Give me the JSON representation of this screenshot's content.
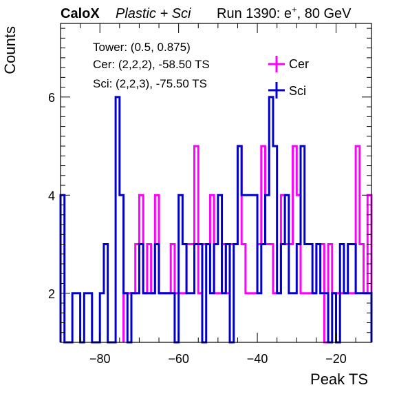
{
  "header": {
    "brand": "CaloX",
    "subtitle": "Plastic + Sci",
    "run_prefix": "Run 1390: e",
    "run_sup": "+",
    "run_suffix": ", 80 GeV"
  },
  "info": {
    "tower": "Tower: (0.5, 0.875)",
    "cer": "Cer: (2,2,2), -58.50 TS",
    "sci": "Sci: (2,2,3), -75.50 TS"
  },
  "chart_data": {
    "type": "step-histogram",
    "xlabel": "Peak TS",
    "ylabel": "Counts",
    "xlim": [
      -90,
      -11
    ],
    "ylim": [
      1,
      7.5
    ],
    "x_ticks": [
      -80,
      -60,
      -40,
      -20
    ],
    "y_ticks": [
      2,
      4,
      6
    ],
    "legend_position": "top-right",
    "series": [
      {
        "name": "Cer",
        "color": "#ff00ff",
        "bins": [
          [
            -74,
            2
          ],
          [
            -73,
            2
          ],
          [
            -72,
            2
          ],
          [
            -71,
            3
          ],
          [
            -70,
            4
          ],
          [
            -69,
            2
          ],
          [
            -68,
            3
          ],
          [
            -67,
            2
          ],
          [
            -66,
            4
          ],
          [
            -65,
            2
          ],
          [
            -64,
            2
          ],
          [
            -63,
            2
          ],
          [
            -62,
            3
          ],
          [
            -61,
            2
          ],
          [
            -60,
            2
          ],
          [
            -59,
            2
          ],
          [
            -58,
            3
          ],
          [
            -57,
            3
          ],
          [
            -56,
            5
          ],
          [
            -55,
            2
          ],
          [
            -54,
            3
          ],
          [
            -53,
            3
          ],
          [
            -52,
            4
          ],
          [
            -51,
            2
          ],
          [
            -50,
            2
          ],
          [
            -49,
            3
          ],
          [
            -48,
            2
          ],
          [
            -47,
            3
          ],
          [
            -46,
            3
          ],
          [
            -45,
            5
          ],
          [
            -44,
            3
          ],
          [
            -43,
            2
          ],
          [
            -42,
            2
          ],
          [
            -41,
            2
          ],
          [
            -40,
            3
          ],
          [
            -39,
            5
          ],
          [
            -38,
            3
          ],
          [
            -37,
            3
          ],
          [
            -36,
            2
          ],
          [
            -35,
            2
          ],
          [
            -34,
            4
          ],
          [
            -33,
            3
          ],
          [
            -32,
            3
          ],
          [
            -31,
            5
          ],
          [
            -30,
            4
          ],
          [
            -29,
            2
          ],
          [
            -28,
            2
          ],
          [
            -27,
            2
          ],
          [
            -26,
            2
          ],
          [
            -25,
            3
          ],
          [
            -24,
            3
          ],
          [
            -23,
            1
          ],
          [
            -22,
            3
          ],
          [
            -21,
            2
          ],
          [
            -20,
            2
          ],
          [
            -19,
            2
          ],
          [
            -18,
            2
          ],
          [
            -17,
            2
          ],
          [
            -16,
            2
          ],
          [
            -15,
            5
          ],
          [
            -14,
            3
          ],
          [
            -13,
            2
          ],
          [
            -12,
            4
          ]
        ]
      },
      {
        "name": "Sci",
        "color": "#0000cc",
        "bins": [
          [
            -90,
            4
          ],
          [
            -89,
            1
          ],
          [
            -88,
            1
          ],
          [
            -87,
            2
          ],
          [
            -86,
            2
          ],
          [
            -85,
            1
          ],
          [
            -84,
            2
          ],
          [
            -83,
            2
          ],
          [
            -82,
            1
          ],
          [
            -81,
            1
          ],
          [
            -80,
            2
          ],
          [
            -79,
            3
          ],
          [
            -78,
            1
          ],
          [
            -77,
            1
          ],
          [
            -76,
            6
          ],
          [
            -75,
            4
          ],
          [
            -74,
            2
          ],
          [
            -73,
            1
          ],
          [
            -72,
            2
          ],
          [
            -71,
            2
          ],
          [
            -70,
            3
          ],
          [
            -69,
            2
          ],
          [
            -68,
            2
          ],
          [
            -67,
            2
          ],
          [
            -66,
            3
          ],
          [
            -65,
            2
          ],
          [
            -64,
            2
          ],
          [
            -63,
            2
          ],
          [
            -62,
            2
          ],
          [
            -61,
            1
          ],
          [
            -60,
            4
          ],
          [
            -59,
            3
          ],
          [
            -58,
            2
          ],
          [
            -57,
            2
          ],
          [
            -56,
            3
          ],
          [
            -55,
            3
          ],
          [
            -54,
            1
          ],
          [
            -53,
            3
          ],
          [
            -52,
            2
          ],
          [
            -51,
            3
          ],
          [
            -50,
            4
          ],
          [
            -49,
            2
          ],
          [
            -48,
            3
          ],
          [
            -47,
            1
          ],
          [
            -46,
            3
          ],
          [
            -45,
            5
          ],
          [
            -44,
            4
          ],
          [
            -43,
            4
          ],
          [
            -42,
            4
          ],
          [
            -41,
            4
          ],
          [
            -40,
            2
          ],
          [
            -39,
            3
          ],
          [
            -38,
            4
          ],
          [
            -37,
            6
          ],
          [
            -36,
            5
          ],
          [
            -35,
            2
          ],
          [
            -34,
            3
          ],
          [
            -33,
            4
          ],
          [
            -32,
            2
          ],
          [
            -31,
            2
          ],
          [
            -30,
            3
          ],
          [
            -29,
            5
          ],
          [
            -28,
            3
          ],
          [
            -27,
            3
          ],
          [
            -26,
            2
          ],
          [
            -25,
            3
          ],
          [
            -24,
            2
          ],
          [
            -23,
            2
          ],
          [
            -22,
            1
          ],
          [
            -21,
            2
          ],
          [
            -20,
            1
          ],
          [
            -19,
            3
          ],
          [
            -18,
            2
          ],
          [
            -17,
            3
          ],
          [
            -16,
            3
          ],
          [
            -15,
            2
          ],
          [
            -14,
            2
          ],
          [
            -13,
            2
          ],
          [
            -12,
            2
          ],
          [
            -11,
            2
          ]
        ]
      }
    ]
  }
}
